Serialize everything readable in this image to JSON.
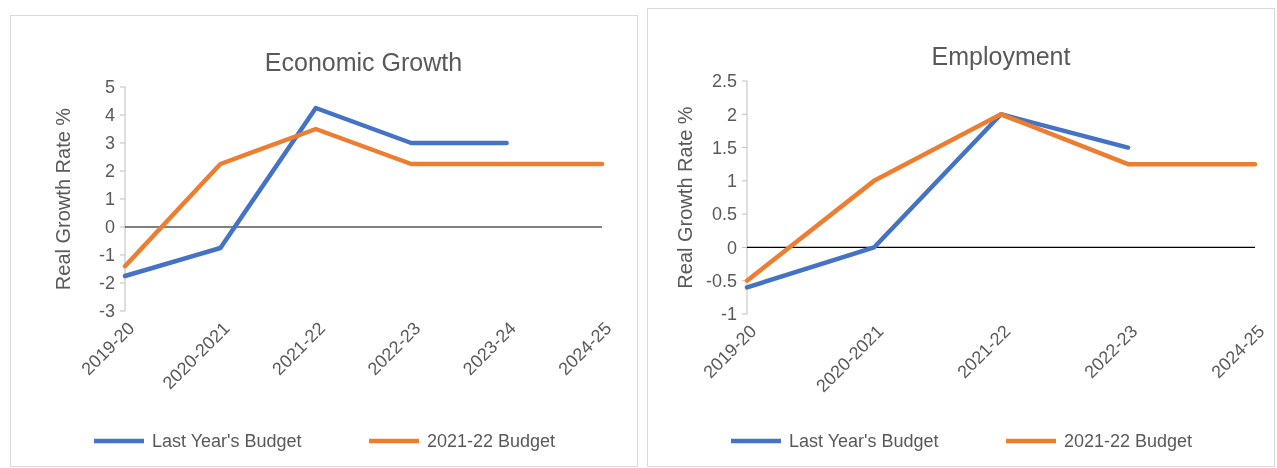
{
  "chart_data": [
    {
      "type": "line",
      "title": "Economic Growth",
      "ylabel": "Real Growth Rate %",
      "categories": [
        "2019-20",
        "2020-2021",
        "2021-22",
        "2022-23",
        "2023-24",
        "2024-25"
      ],
      "series": [
        {
          "name": "Last Year's Budget",
          "color": "#4472c4",
          "values": [
            -1.75,
            -0.75,
            4.25,
            3,
            3,
            null
          ]
        },
        {
          "name": "2021-22 Budget",
          "color": "#ed7d31",
          "values": [
            -1.4,
            2.25,
            3.5,
            2.25,
            2.25,
            2.25
          ]
        }
      ],
      "ylim": [
        -3,
        5
      ],
      "yticks": [
        -3,
        -2,
        -1,
        0,
        1,
        2,
        3,
        4,
        5
      ],
      "legend": "bottom",
      "marker": "none"
    },
    {
      "type": "line",
      "title": "Employment",
      "ylabel": "Real Growth Rate %",
      "categories": [
        "2019-20",
        "2020-2021",
        "2021-22",
        "2022-23",
        "2024-25"
      ],
      "series": [
        {
          "name": "Last Year's Budget",
          "color": "#4472c4",
          "values": [
            -0.6,
            0,
            2,
            1.5,
            null
          ]
        },
        {
          "name": "2021-22 Budget",
          "color": "#ed7d31",
          "values": [
            -0.5,
            1,
            2,
            1.25,
            1.25
          ]
        }
      ],
      "ylim": [
        -1,
        2.5
      ],
      "yticks": [
        -1,
        -0.5,
        0,
        0.5,
        1,
        1.5,
        2,
        2.5
      ],
      "legend": "bottom",
      "marker": "none"
    }
  ]
}
